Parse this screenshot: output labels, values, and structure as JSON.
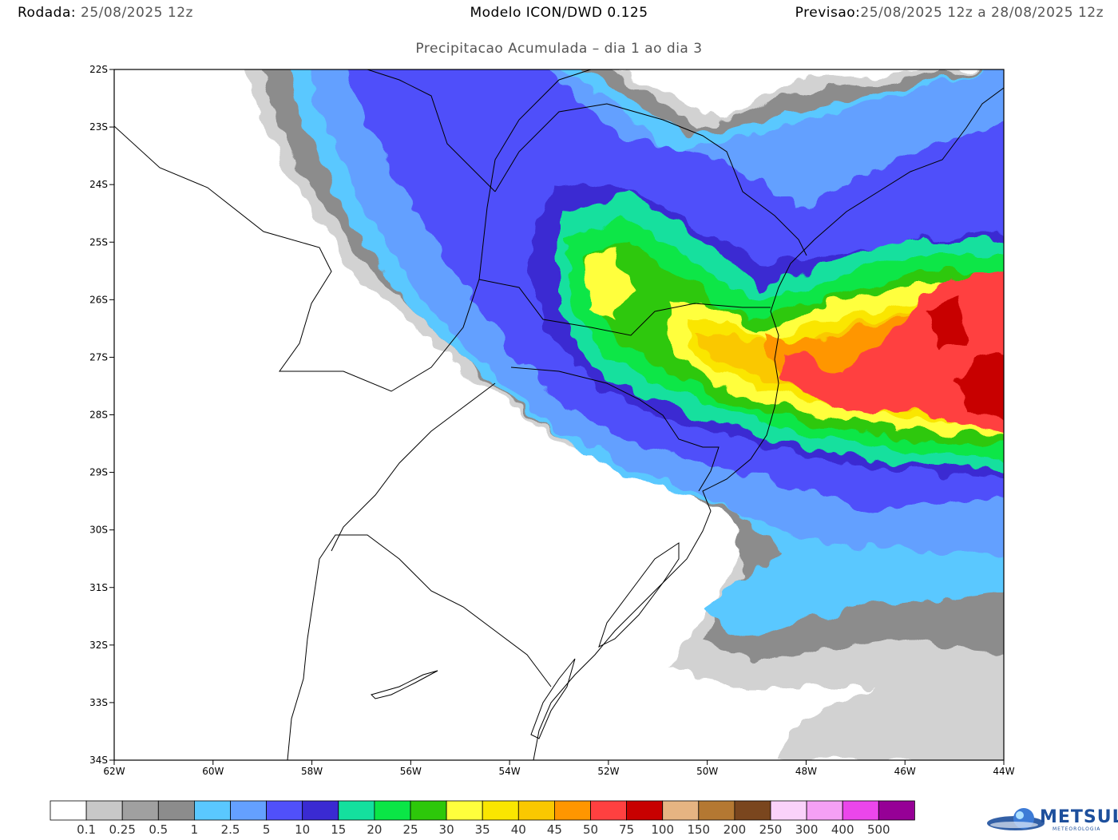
{
  "header": {
    "run_label": "Rodada:",
    "run_value": "25/08/2025 12z",
    "model": "Modelo ICON/DWD 0.125",
    "forecast_label": "Previsao:",
    "forecast_value": "25/08/2025 12z a 28/08/2025 12z",
    "subtitle": "Precipitacao Acumulada – dia 1 ao dia 3"
  },
  "map": {
    "lon_range": [
      -62,
      -44
    ],
    "lat_range": [
      -34,
      -22
    ],
    "lat_ticks": [
      "22S",
      "23S",
      "24S",
      "25S",
      "26S",
      "27S",
      "28S",
      "29S",
      "30S",
      "31S",
      "32S",
      "33S",
      "34S"
    ],
    "lon_ticks": [
      "62W",
      "60W",
      "58W",
      "56W",
      "54W",
      "52W",
      "50W",
      "48W",
      "46W",
      "44W"
    ]
  },
  "legend": {
    "colors": [
      "#ffffff",
      "#c8c8c8",
      "#a0a0a0",
      "#8c8c8c",
      "#5ac8ff",
      "#64a0ff",
      "#5050fa",
      "#3a2ad2",
      "#14e09e",
      "#0ae646",
      "#2dc80a",
      "#ffff3c",
      "#fae600",
      "#fac800",
      "#ff9600",
      "#ff4040",
      "#c80000",
      "#e6b482",
      "#b47832",
      "#7a461e",
      "#fad2fa",
      "#f5a0f5",
      "#eb46eb",
      "#960096"
    ],
    "labels": [
      "0.1",
      "0.25",
      "0.5",
      "1",
      "2.5",
      "5",
      "10",
      "15",
      "20",
      "25",
      "30",
      "35",
      "40",
      "45",
      "50",
      "75",
      "100",
      "150",
      "200",
      "250",
      "300",
      "400",
      "500"
    ]
  },
  "logo": {
    "name": "METSUL",
    "sub": "METEOROLOGIA"
  }
}
